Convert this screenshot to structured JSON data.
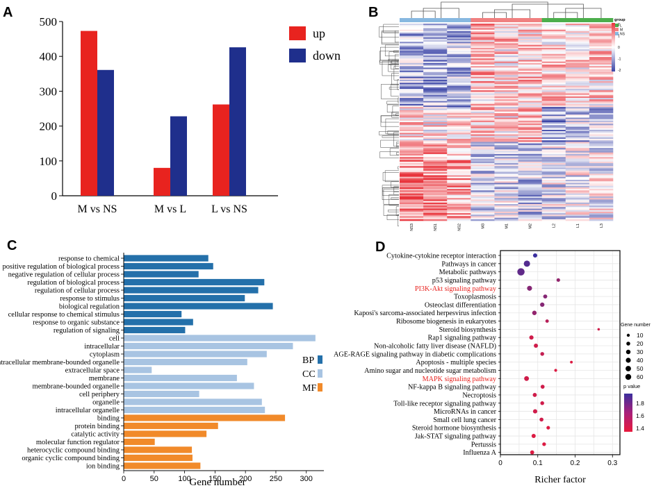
{
  "panel_labels": [
    "A",
    "B",
    "C",
    "D"
  ],
  "colors": {
    "up": "#e8231f",
    "down": "#1f2f8c",
    "BP": "#2470aa",
    "CC": "#a8c4e2",
    "MF": "#f18a2a",
    "grid": "#e6e6e6",
    "heat_high": "#e8323a",
    "heat_low": "#3a44a6",
    "heat_mid": "#ffffff",
    "group_L": "#4cae4c",
    "group_M": "#f08080",
    "group_NS": "#87b8e0",
    "pvalue_low": "#e8193c",
    "pvalue_high": "#3b2f9e",
    "highlight": "#e8231f"
  },
  "chart_data": [
    {
      "panel": "A",
      "type": "bar",
      "categories": [
        "M vs NS",
        "M vs L",
        "L vs NS"
      ],
      "series": [
        {
          "name": "up",
          "values": [
            473,
            80,
            262
          ]
        },
        {
          "name": "down",
          "values": [
            361,
            228,
            426
          ]
        }
      ],
      "ylim": [
        0,
        500
      ],
      "yticks": [
        0,
        100,
        200,
        300,
        400,
        500
      ],
      "xlabel": "",
      "ylabel": "",
      "legend": "top-right"
    },
    {
      "panel": "B",
      "type": "heatmap",
      "columns": [
        "NS3",
        "NS1",
        "NS2",
        "M3",
        "M1",
        "M2",
        "L2",
        "L1",
        "L3"
      ],
      "groups": [
        "NS",
        "NS",
        "NS",
        "M",
        "M",
        "M",
        "L",
        "L",
        "L"
      ],
      "legend_title": "group",
      "legend_groups": [
        "L",
        "M",
        "NS"
      ],
      "color_scale_ticks": [
        "2",
        "1",
        "0",
        "-1",
        "-2"
      ],
      "rows": 130
    },
    {
      "panel": "C",
      "type": "bar",
      "orientation": "horizontal",
      "categories": [
        "response to chemical",
        "positive regulation of biological process",
        "negative regulation of cellular process",
        "regulation of biological process",
        "regulation of cellular process",
        "response to stimulus",
        "biological regulation",
        "cellular response to chemical stimulus",
        "response to organic substance",
        "regulation of signaling",
        "cell",
        "intracellular",
        "cytoplasm",
        "intracellular membrane-bounded organelle",
        "extracellular space",
        "membrane",
        "membrane-bounded organelle",
        "cell periphery",
        "organelle",
        "intracellular organelle",
        "binding",
        "protein binding",
        "catalytic activity",
        "molecular function regulator",
        "heterocyclic compound binding",
        "organic cyclic compound binding",
        "ion binding"
      ],
      "values": [
        139,
        147,
        123,
        231,
        221,
        199,
        245,
        95,
        114,
        101,
        315,
        278,
        235,
        203,
        46,
        186,
        214,
        124,
        227,
        232,
        265,
        155,
        136,
        51,
        112,
        113,
        126
      ],
      "groups": [
        "BP",
        "BP",
        "BP",
        "BP",
        "BP",
        "BP",
        "BP",
        "BP",
        "BP",
        "BP",
        "CC",
        "CC",
        "CC",
        "CC",
        "CC",
        "CC",
        "CC",
        "CC",
        "CC",
        "CC",
        "MF",
        "MF",
        "MF",
        "MF",
        "MF",
        "MF",
        "MF"
      ],
      "legend": [
        "BP",
        "CC",
        "MF"
      ],
      "xlabel": "Gene number",
      "xlim": [
        0,
        330
      ],
      "xticks": [
        0,
        50,
        100,
        150,
        200,
        250,
        300
      ]
    },
    {
      "panel": "D",
      "type": "scatter",
      "categories": [
        "Cytokine-cytokine receptor interaction",
        "Pathways in cancer",
        "Metabolic pathways",
        "p53 signaling pathway",
        "PI3K-Akt signaling pathway",
        "Toxoplasmosis",
        "Osteoclast differentiation",
        "Kaposi's sarcoma-associated herpesvirus infection",
        "Ribosome biogenesis in eukaryotes",
        "Steroid biosynthesis",
        "Rap1 signaling pathway",
        "Non-alcoholic fatty liver disease (NAFLD)",
        "AGE-RAGE signaling pathway in diabetic complications",
        "Apoptosis - multiple species",
        "Amino sugar and nucleotide sugar metabolism",
        "MAPK signaling pathway",
        "NF-kappa B signaling pathway",
        "Necroptosis",
        "Toll-like receptor signaling pathway",
        "MicroRNAs in cancer",
        "Small cell lung cancer",
        "Steroid hormone biosynthesis",
        "Jak-STAT signaling pathway",
        "Pertussis",
        "Influenza A"
      ],
      "highlighted": [
        "PI3K-Akt signaling pathway",
        "MAPK signaling pathway"
      ],
      "richer_factor": [
        0.093,
        0.071,
        0.055,
        0.155,
        0.078,
        0.12,
        0.112,
        0.091,
        0.125,
        0.263,
        0.083,
        0.095,
        0.112,
        0.19,
        0.148,
        0.07,
        0.113,
        0.092,
        0.112,
        0.093,
        0.11,
        0.128,
        0.089,
        0.117,
        0.085
      ],
      "gene_number": [
        14,
        40,
        60,
        8,
        22,
        12,
        15,
        16,
        7,
        2,
        14,
        13,
        10,
        3,
        4,
        20,
        11,
        12,
        10,
        14,
        11,
        8,
        13,
        9,
        12
      ],
      "p_value": [
        2.0,
        1.9,
        1.85,
        1.65,
        1.7,
        1.7,
        1.7,
        1.65,
        1.5,
        1.4,
        1.4,
        1.4,
        1.45,
        1.35,
        1.35,
        1.4,
        1.4,
        1.4,
        1.4,
        1.4,
        1.4,
        1.35,
        1.35,
        1.35,
        1.35
      ],
      "xlabel": "Richer factor",
      "xlim": [
        0,
        0.32
      ],
      "xticks": [
        "0",
        "0.1",
        "0.2",
        "0.3"
      ],
      "size_legend_title": "Gene number",
      "size_legend": [
        10,
        20,
        30,
        40,
        50,
        60
      ],
      "color_legend_title": "p value",
      "color_legend_ticks": [
        "1.8",
        "1.6",
        "1.4"
      ],
      "color_range": [
        1.3,
        2.0
      ]
    }
  ]
}
